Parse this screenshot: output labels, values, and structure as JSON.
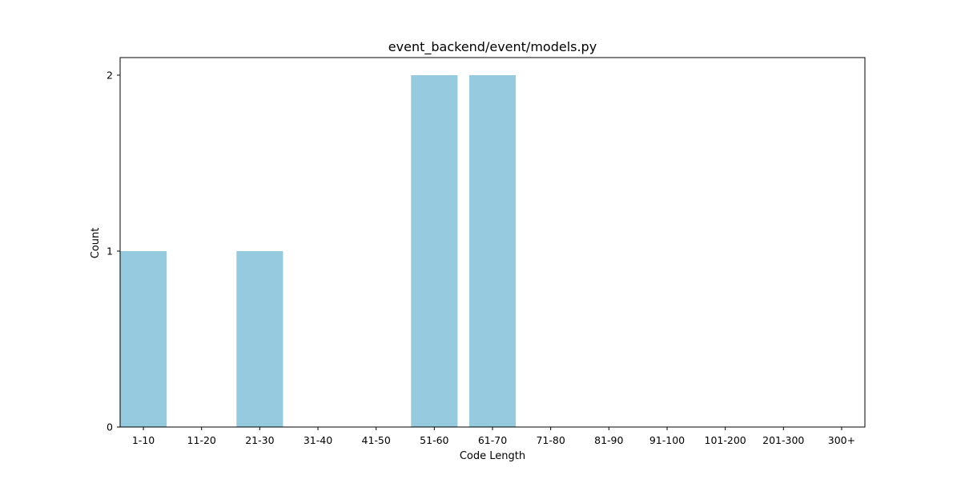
{
  "chart_data": {
    "type": "bar",
    "title": "event_backend/event/models.py",
    "xlabel": "Code Length",
    "ylabel": "Count",
    "categories": [
      "1-10",
      "11-20",
      "21-30",
      "31-40",
      "41-50",
      "51-60",
      "61-70",
      "71-80",
      "81-90",
      "91-100",
      "101-200",
      "201-300",
      "300+"
    ],
    "values": [
      1,
      0,
      1,
      0,
      0,
      2,
      2,
      0,
      0,
      0,
      0,
      0,
      0
    ],
    "ylim": [
      0,
      2.1
    ],
    "yticks": [
      0,
      1,
      2
    ],
    "grid": false,
    "legend": "none",
    "bar_color": "#96cade"
  }
}
